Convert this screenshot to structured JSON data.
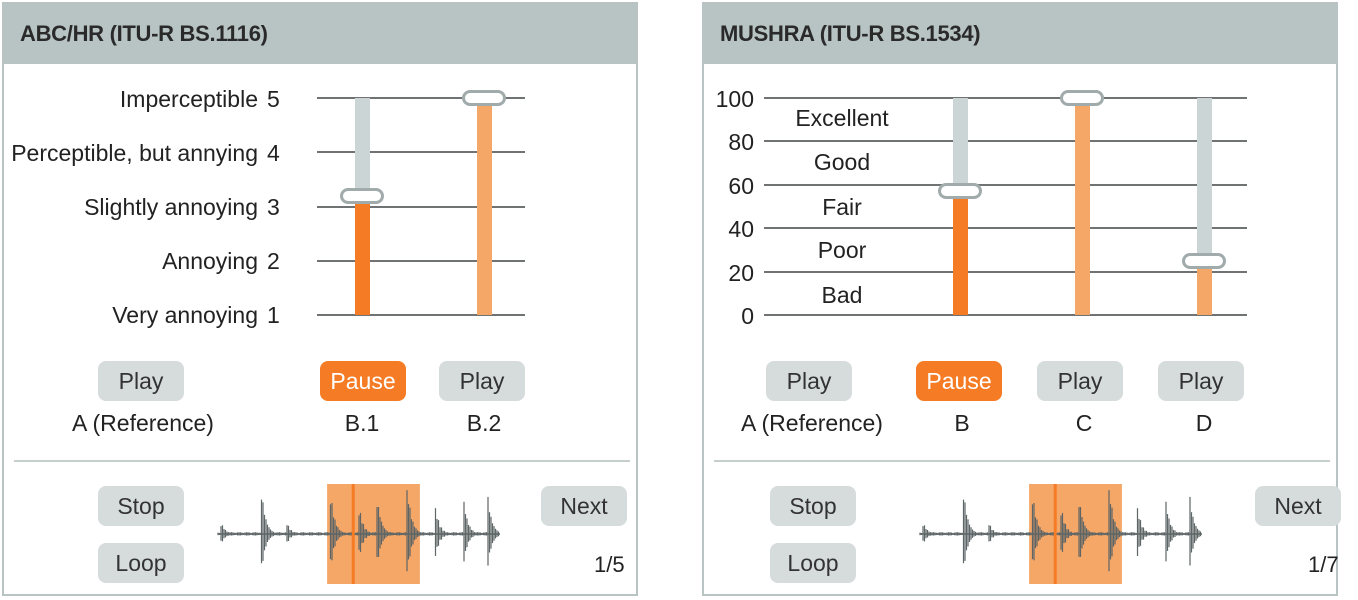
{
  "left": {
    "title": "ABC/HR (ITU-R BS.1116)",
    "scale": [
      {
        "label": "Imperceptible",
        "value": "5"
      },
      {
        "label": "Perceptible, but annying",
        "value": "4"
      },
      {
        "label": "Slightly annoying",
        "value": "3"
      },
      {
        "label": "Annoying",
        "value": "2"
      },
      {
        "label": "Very annoying",
        "value": "1"
      }
    ],
    "sliders": [
      {
        "item": "B.1",
        "value": 3.2,
        "color": "#f57c25"
      },
      {
        "item": "B.2",
        "value": 5.0,
        "color": "#f5a768"
      }
    ],
    "items": [
      {
        "label": "A (Reference)",
        "button": "Play",
        "active": false
      },
      {
        "label": "B.1",
        "button": "Pause",
        "active": true
      },
      {
        "label": "B.2",
        "button": "Play",
        "active": false
      }
    ],
    "controls": {
      "stop": "Stop",
      "loop": "Loop",
      "next": "Next",
      "page": "1/5"
    }
  },
  "right": {
    "title": "MUSHRA (ITU-R BS.1534)",
    "ticks": [
      "100",
      "80",
      "60",
      "40",
      "20",
      "0"
    ],
    "bands": [
      "Excellent",
      "Good",
      "Fair",
      "Poor",
      "Bad"
    ],
    "sliders": [
      {
        "item": "B",
        "value": 57,
        "color": "#f57c25"
      },
      {
        "item": "C",
        "value": 100,
        "color": "#f5a768"
      },
      {
        "item": "D",
        "value": 25,
        "color": "#f5a768"
      }
    ],
    "items": [
      {
        "label": "A (Reference)",
        "button": "Play",
        "active": false
      },
      {
        "label": "B",
        "button": "Pause",
        "active": true
      },
      {
        "label": "C",
        "button": "Play",
        "active": false
      },
      {
        "label": "D",
        "button": "Play",
        "active": false
      }
    ],
    "controls": {
      "stop": "Stop",
      "loop": "Loop",
      "next": "Next",
      "page": "1/7"
    }
  },
  "playback": {
    "selection_start": 0.39,
    "selection_end": 0.71,
    "playhead": 0.48
  },
  "colors": {
    "accent": "#f57c25",
    "accent_light": "#f5a768",
    "track": "#ccd5d5",
    "header": "#b8c4c4",
    "button": "#d6dcdc",
    "waveform": "#5d6566",
    "selection": "#f5a768"
  }
}
